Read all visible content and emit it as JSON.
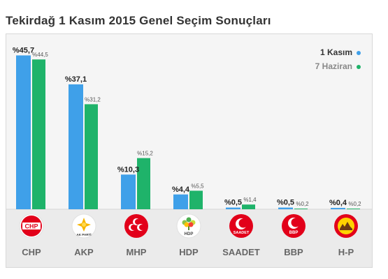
{
  "page_title": "Tekirdağ 1 Kasım 2015 Genel Seçim Sonuçları",
  "colors": {
    "current": "#3fa0e9",
    "previous": "#1fb36a",
    "logo_red": "#e2001a"
  },
  "chart_data": {
    "type": "bar",
    "title": "Tekirdağ 1 Kasım 2015 Genel Seçim Sonuçları",
    "categories": [
      "CHP",
      "AKP",
      "MHP",
      "HDP",
      "SAADET",
      "BBP",
      "H-P"
    ],
    "series": [
      {
        "name": "1 Kasım",
        "values": [
          45.7,
          37.1,
          10.3,
          4.4,
          0.5,
          0.5,
          0.4
        ],
        "labels": [
          "%45,7",
          "%37,1",
          "%10,3",
          "%4,4",
          "%0,5",
          "%0,5",
          "%0,4"
        ]
      },
      {
        "name": "7 Haziran",
        "values": [
          44.5,
          31.2,
          15.2,
          5.5,
          1.4,
          0.2,
          0.2
        ],
        "labels": [
          "%44,5",
          "%31,2",
          "%15,2",
          "%5,5",
          "%1,4",
          "%0,2",
          "%0,2"
        ]
      }
    ],
    "ylim": [
      0,
      46
    ],
    "legend_position": "top-right",
    "grid": false
  },
  "logos": [
    {
      "text": "CHP",
      "icon": "chp-logo"
    },
    {
      "text": "AK PARTİ",
      "icon": "akp-logo"
    },
    {
      "text": "",
      "icon": "mhp-logo"
    },
    {
      "text": "HDP",
      "icon": "hdp-logo"
    },
    {
      "text": "SAADET",
      "icon": "saadet-logo"
    },
    {
      "text": "BBP",
      "icon": "bbp-logo"
    },
    {
      "text": "",
      "icon": "hp-logo"
    }
  ]
}
